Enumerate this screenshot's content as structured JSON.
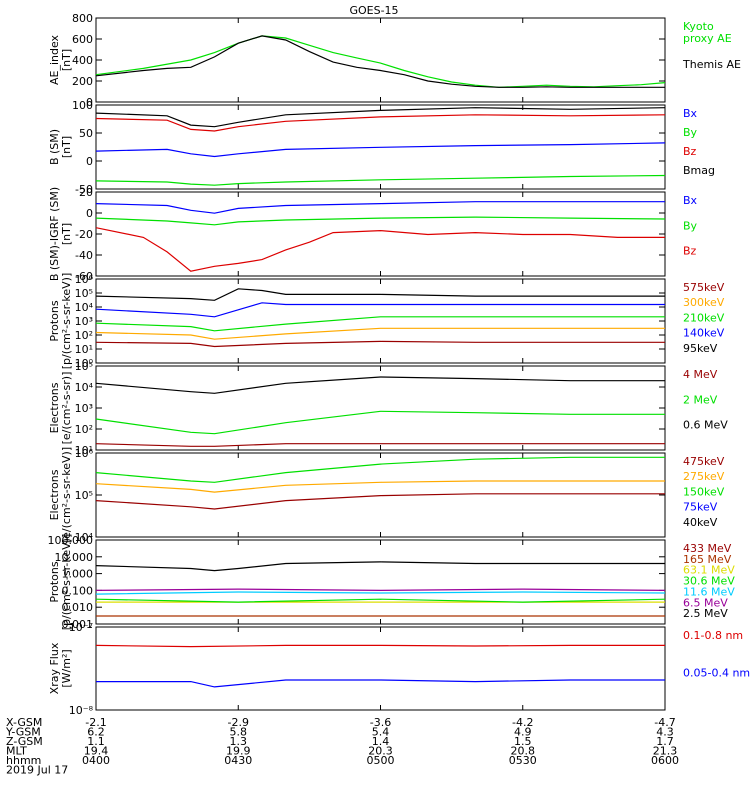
{
  "title": "GOES-15",
  "colors": {
    "black": "#000000",
    "blue": "#0000ff",
    "green": "#00e000",
    "red": "#dd0000",
    "dark_red": "#990000",
    "orange": "#ffaa00",
    "yellow": "#dddd00",
    "cyan": "#00ccff",
    "magenta": "#990099",
    "brown": "#aa3300"
  },
  "chart_data": [
    {
      "type": "line",
      "ylabel": "AE_index\n[nT]",
      "yscale": "linear",
      "ylim": [
        0,
        800
      ],
      "yticks": [
        "0",
        "200",
        "400",
        "600",
        "800"
      ],
      "series": [
        {
          "name": "Kyoto\nproxy AE",
          "color": "green",
          "x": [
            0,
            10,
            20,
            25,
            30,
            35,
            40,
            45,
            50,
            55,
            60,
            65,
            70,
            75,
            80,
            85,
            90,
            95,
            100,
            105,
            110,
            115,
            120
          ],
          "y": [
            260,
            320,
            400,
            470,
            560,
            630,
            610,
            540,
            470,
            420,
            370,
            300,
            240,
            190,
            160,
            140,
            150,
            160,
            150,
            145,
            155,
            165,
            185
          ]
        },
        {
          "name": "Themis AE",
          "color": "black",
          "x": [
            0,
            10,
            15,
            20,
            25,
            30,
            35,
            40,
            45,
            50,
            55,
            60,
            65,
            70,
            75,
            80,
            85,
            90,
            95,
            100,
            105,
            110,
            115,
            120
          ],
          "y": [
            250,
            300,
            320,
            330,
            430,
            560,
            630,
            590,
            480,
            380,
            330,
            300,
            260,
            200,
            170,
            150,
            140,
            140,
            145,
            140,
            140,
            140,
            140,
            140
          ]
        }
      ]
    },
    {
      "type": "line",
      "ylabel": "B (SM)\n[nT]",
      "yscale": "linear",
      "ylim": [
        -55,
        100
      ],
      "yticks": [
        "-50",
        "0",
        "50",
        "100"
      ],
      "series": [
        {
          "name": "Bx",
          "color": "blue",
          "x": [
            0,
            15,
            20,
            25,
            30,
            40,
            60,
            80,
            100,
            120
          ],
          "y": [
            15,
            18,
            10,
            5,
            10,
            18,
            22,
            25,
            27,
            30
          ]
        },
        {
          "name": "By",
          "color": "green",
          "x": [
            0,
            15,
            20,
            25,
            30,
            40,
            60,
            80,
            100,
            120
          ],
          "y": [
            -40,
            -42,
            -46,
            -48,
            -45,
            -42,
            -38,
            -35,
            -32,
            -30
          ]
        },
        {
          "name": "Bz",
          "color": "red",
          "x": [
            0,
            15,
            20,
            25,
            30,
            40,
            60,
            80,
            100,
            120
          ],
          "y": [
            75,
            72,
            55,
            52,
            60,
            70,
            78,
            82,
            80,
            82
          ]
        },
        {
          "name": "Bmag",
          "color": "black",
          "x": [
            0,
            15,
            20,
            25,
            30,
            40,
            60,
            80,
            100,
            120
          ],
          "y": [
            85,
            80,
            63,
            60,
            68,
            82,
            90,
            95,
            92,
            95
          ]
        }
      ]
    },
    {
      "type": "line",
      "ylabel": "B (SM)-IGRF (SM)\n[nT]",
      "yscale": "linear",
      "ylim": [
        -65,
        22
      ],
      "yticks": [
        "-60",
        "-40",
        "-20",
        "0",
        "20"
      ],
      "series": [
        {
          "name": "Bx",
          "color": "blue",
          "x": [
            0,
            15,
            20,
            25,
            30,
            40,
            60,
            80,
            100,
            120
          ],
          "y": [
            10,
            8,
            3,
            0,
            5,
            8,
            10,
            12,
            12,
            12
          ]
        },
        {
          "name": "By",
          "color": "green",
          "x": [
            0,
            15,
            20,
            25,
            30,
            40,
            60,
            80,
            100,
            120
          ],
          "y": [
            -5,
            -8,
            -10,
            -12,
            -9,
            -7,
            -5,
            -4,
            -5,
            -6
          ]
        },
        {
          "name": "Bz",
          "color": "red",
          "x": [
            0,
            10,
            15,
            20,
            25,
            30,
            35,
            40,
            45,
            50,
            60,
            70,
            80,
            90,
            100,
            110,
            120
          ],
          "y": [
            -15,
            -25,
            -40,
            -60,
            -55,
            -52,
            -48,
            -38,
            -30,
            -20,
            -18,
            -22,
            -20,
            -22,
            -22,
            -25,
            -25
          ]
        }
      ]
    },
    {
      "type": "line",
      "ylabel": "Protons\n[p/(cm²-s-sr-keV)]",
      "yscale": "log",
      "ylim": [
        1,
        1000000
      ],
      "yticks": [
        "10⁰",
        "10¹",
        "10²",
        "10³",
        "10⁴",
        "10⁵",
        "10⁶"
      ],
      "series": [
        {
          "name": "575keV",
          "color": "dark_red",
          "x": [
            0,
            20,
            25,
            40,
            60,
            80,
            100,
            120
          ],
          "y": [
            30,
            25,
            15,
            25,
            35,
            30,
            30,
            30
          ]
        },
        {
          "name": "300keV",
          "color": "orange",
          "x": [
            0,
            20,
            25,
            40,
            60,
            80,
            100,
            120
          ],
          "y": [
            150,
            100,
            50,
            120,
            300,
            300,
            300,
            300
          ]
        },
        {
          "name": "210keV",
          "color": "green",
          "x": [
            0,
            20,
            25,
            40,
            60,
            80,
            100,
            120
          ],
          "y": [
            700,
            400,
            200,
            600,
            2000,
            2000,
            2000,
            2000
          ]
        },
        {
          "name": "140keV",
          "color": "blue",
          "x": [
            0,
            20,
            25,
            35,
            40,
            60,
            80,
            100,
            120
          ],
          "y": [
            7000,
            3000,
            2000,
            20000,
            15000,
            15000,
            15000,
            15000,
            15000
          ]
        },
        {
          "name": "95keV",
          "color": "black",
          "x": [
            0,
            20,
            25,
            30,
            35,
            40,
            60,
            80,
            100,
            120
          ],
          "y": [
            60000,
            40000,
            30000,
            200000,
            150000,
            80000,
            80000,
            60000,
            60000,
            60000
          ]
        }
      ]
    },
    {
      "type": "line",
      "ylabel": "Electrons\n[e/(cm²-s-sr)]",
      "yscale": "log",
      "ylim": [
        10,
        100000
      ],
      "yticks": [
        "10¹",
        "10²",
        "10³",
        "10⁴",
        "10⁵"
      ],
      "series": [
        {
          "name": "4 MeV",
          "color": "dark_red",
          "x": [
            0,
            20,
            25,
            40,
            60,
            80,
            100,
            120
          ],
          "y": [
            20,
            15,
            15,
            20,
            20,
            20,
            20,
            20
          ]
        },
        {
          "name": "2 MeV",
          "color": "green",
          "x": [
            0,
            20,
            25,
            40,
            60,
            80,
            100,
            120
          ],
          "y": [
            300,
            70,
            60,
            200,
            700,
            600,
            500,
            500
          ]
        },
        {
          "name": "0.6 MeV",
          "color": "black",
          "x": [
            0,
            20,
            25,
            40,
            60,
            80,
            100,
            120
          ],
          "y": [
            15000,
            6000,
            5000,
            15000,
            30000,
            25000,
            20000,
            20000
          ]
        }
      ]
    },
    {
      "type": "line",
      "ylabel": "Electrons\n[e/(cm²-s-sr-keV)]",
      "yscale": "log",
      "ylim": [
        1000,
        1000000
      ],
      "yticks": [
        "10⁴",
        "10⁵",
        "10⁶"
      ],
      "series": [
        {
          "name": "475keV",
          "color": "dark_red",
          "x": [
            0,
            20,
            25,
            40,
            60,
            80,
            100,
            120
          ],
          "y": [
            20000,
            12000,
            10000,
            20000,
            30000,
            35000,
            35000,
            35000
          ]
        },
        {
          "name": "275keV",
          "color": "orange",
          "x": [
            0,
            20,
            25,
            40,
            60,
            80,
            100,
            120
          ],
          "y": [
            80000,
            50000,
            40000,
            70000,
            90000,
            100000,
            100000,
            100000
          ]
        },
        {
          "name": "150keV",
          "color": "green",
          "x": [
            0,
            20,
            25,
            40,
            60,
            80,
            100,
            120
          ],
          "y": [
            200000,
            100000,
            90000,
            200000,
            400000,
            600000,
            700000,
            700000
          ]
        },
        {
          "name": "75keV",
          "color": "blue",
          "x": [],
          "y": []
        },
        {
          "name": "40keV",
          "color": "black",
          "x": [],
          "y": []
        }
      ]
    },
    {
      "type": "line",
      "ylabel": "Protons\n[p/(cm²-s-sr-keV)]",
      "yscale": "log",
      "ylim": [
        0.001,
        100
      ],
      "yticks": [
        "0.001",
        "0.010",
        "0.100",
        "1.000",
        "10.000",
        "100.000"
      ],
      "series": [
        {
          "name": "433 MeV",
          "color": "dark_red",
          "x": [],
          "y": []
        },
        {
          "name": "165 MeV",
          "color": "brown",
          "x": [
            0,
            30,
            60,
            90,
            120
          ],
          "y": [
            0.003,
            0.003,
            0.003,
            0.003,
            0.003
          ]
        },
        {
          "name": "63.1 MeV",
          "color": "yellow",
          "x": [
            0,
            30,
            60,
            90,
            120
          ],
          "y": [
            0.02,
            0.02,
            0.02,
            0.02,
            0.02
          ]
        },
        {
          "name": "30.6 MeV",
          "color": "green",
          "x": [
            0,
            30,
            60,
            90,
            120
          ],
          "y": [
            0.03,
            0.02,
            0.03,
            0.02,
            0.03
          ]
        },
        {
          "name": "11.6 MeV",
          "color": "cyan",
          "x": [
            0,
            30,
            60,
            90,
            120
          ],
          "y": [
            0.06,
            0.08,
            0.07,
            0.08,
            0.07
          ]
        },
        {
          "name": "6.5 MeV",
          "color": "magenta",
          "x": [
            0,
            30,
            60,
            90,
            120
          ],
          "y": [
            0.1,
            0.12,
            0.1,
            0.12,
            0.1
          ]
        },
        {
          "name": "2.5 MeV",
          "color": "black",
          "x": [
            0,
            20,
            25,
            30,
            40,
            60,
            80,
            100,
            120
          ],
          "y": [
            3,
            2,
            1.5,
            2,
            4,
            5,
            4,
            4,
            4
          ]
        }
      ]
    },
    {
      "type": "line",
      "ylabel": "Xray Flux\n[W/m²]",
      "yscale": "log",
      "ylim": [
        1e-08,
        1e-07
      ],
      "yticks": [
        "10⁻⁸",
        "10⁻⁷"
      ],
      "series": [
        {
          "name": "0.1-0.8 nm",
          "color": "red",
          "x": [
            0,
            20,
            40,
            60,
            80,
            100,
            120
          ],
          "y": [
            6e-08,
            5.8e-08,
            6e-08,
            6e-08,
            5.9e-08,
            6e-08,
            6e-08
          ]
        },
        {
          "name": "0.05-0.4 nm",
          "color": "blue",
          "x": [
            0,
            20,
            25,
            40,
            60,
            80,
            100,
            120
          ],
          "y": [
            2.2e-08,
            2.2e-08,
            1.9e-08,
            2.3e-08,
            2.3e-08,
            2.2e-08,
            2.3e-08,
            2.3e-08
          ]
        }
      ]
    }
  ],
  "x_axis": {
    "minutes_range": [
      0,
      120
    ],
    "tick_minutes": [
      0,
      30,
      60,
      90,
      120
    ],
    "row_labels": [
      "X-GSM",
      "Y-GSM",
      "Z-GSM",
      "MLT",
      "hhmm",
      "2019 Jul 17"
    ],
    "columns": [
      [
        "-2.1",
        "6.2",
        "1.1",
        "19.4",
        "0400"
      ],
      [
        "-2.9",
        "5.8",
        "1.3",
        "19.9",
        "0430"
      ],
      [
        "-3.6",
        "5.4",
        "1.4",
        "20.3",
        "0500"
      ],
      [
        "-4.2",
        "4.9",
        "1.5",
        "20.8",
        "0530"
      ],
      [
        "-4.7",
        "4.3",
        "1.7",
        "21.3",
        "0600"
      ]
    ]
  }
}
